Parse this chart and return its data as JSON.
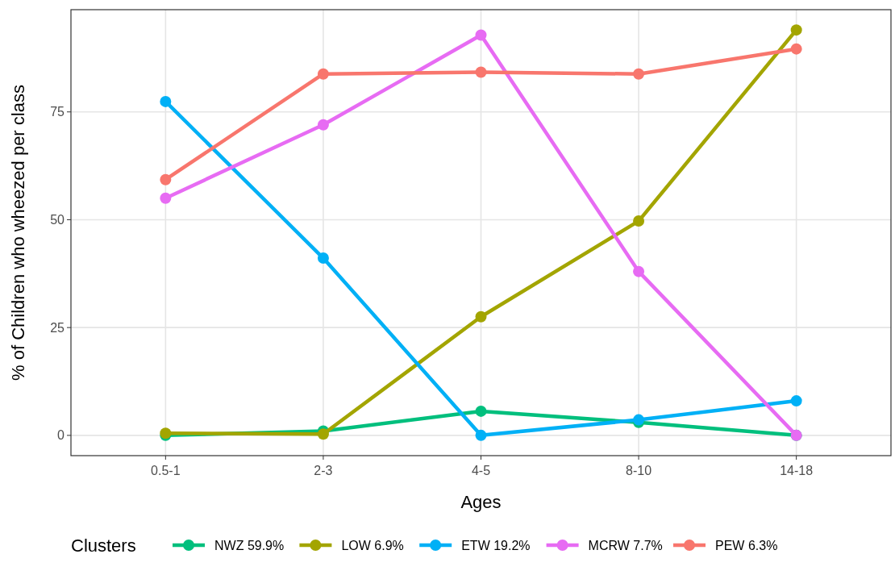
{
  "chart_data": {
    "type": "line",
    "xlabel": "Ages",
    "ylabel": "% of Children who wheezed per class",
    "legend_title": "Clusters",
    "categories": [
      "0.5-1",
      "2-3",
      "4-5",
      "8-10",
      "14-18"
    ],
    "series": [
      {
        "name": "NWZ 59.9%",
        "color": "#00bf7d",
        "values": [
          0,
          1,
          5.6,
          3,
          0
        ]
      },
      {
        "name": "LOW 6.9%",
        "color": "#a3a500",
        "values": [
          0.5,
          0.3,
          27.5,
          49.7,
          94
        ]
      },
      {
        "name": "ETW 19.2%",
        "color": "#00b0f6",
        "values": [
          77.4,
          41.1,
          0,
          3.6,
          8
        ]
      },
      {
        "name": "MCRW 7.7%",
        "color": "#e76bf3",
        "values": [
          55,
          72,
          92.8,
          38,
          0
        ]
      },
      {
        "name": "PEW 6.3%",
        "color": "#f8766d",
        "values": [
          59.3,
          83.8,
          84.2,
          83.8,
          89.6
        ]
      }
    ],
    "ylim": [
      -4.7,
      98.7
    ],
    "yticks": [
      0,
      25,
      50,
      75
    ],
    "grid": true,
    "legend": "bottom",
    "marker": "circle",
    "line_style": "solid"
  }
}
